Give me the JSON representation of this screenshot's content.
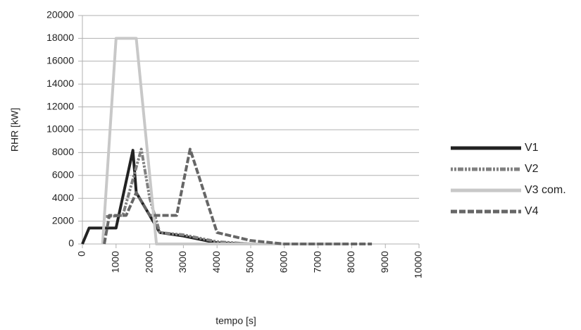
{
  "chart_data": {
    "type": "line",
    "x_label": "tempo [s]",
    "y_label": "RHR [kW]",
    "xlim": [
      0,
      10000
    ],
    "xticks": [
      0,
      1000,
      2000,
      3000,
      4000,
      5000,
      6000,
      7000,
      8000,
      9000,
      10000
    ],
    "ylim": [
      0,
      20000
    ],
    "yticks": [
      0,
      2000,
      4000,
      6000,
      8000,
      10000,
      12000,
      14000,
      16000,
      18000,
      20000
    ],
    "grid": true,
    "legend": "right",
    "series": [
      {
        "name": "V1",
        "color": "#222222",
        "style": "solid",
        "x": [
          0,
          200,
          1000,
          1500,
          1600,
          2300,
          3000,
          4000,
          5000,
          7200
        ],
        "values": [
          0,
          1400,
          1400,
          8200,
          4500,
          1000,
          700,
          100,
          0,
          0
        ]
      },
      {
        "name": "V2",
        "color": "#808080",
        "style": "dotted",
        "x": [
          700,
          1200,
          1750,
          2000,
          2300,
          3000,
          4000,
          5000,
          7200
        ],
        "values": [
          2400,
          2500,
          8300,
          4000,
          1000,
          800,
          200,
          0,
          0
        ]
      },
      {
        "name": "V3 com.",
        "color": "#c8c8c8",
        "style": "solid",
        "x": [
          600,
          1000,
          1600,
          2200,
          7800
        ],
        "values": [
          0,
          18000,
          18000,
          0,
          0
        ]
      },
      {
        "name": "V4",
        "color": "#666666",
        "style": "dashed",
        "x": [
          650,
          800,
          1300,
          1600,
          2000,
          2800,
          3200,
          4000,
          5000,
          6000,
          8600
        ],
        "values": [
          0,
          2500,
          2500,
          4500,
          2500,
          2500,
          8300,
          1000,
          300,
          0,
          0
        ]
      }
    ]
  }
}
